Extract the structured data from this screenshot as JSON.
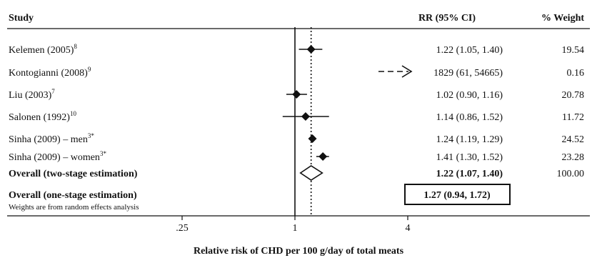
{
  "headers": {
    "study": "Study",
    "rr": "RR (95% CI)",
    "weight": "% Weight"
  },
  "chart_data": {
    "type": "forest",
    "x_scale": "log",
    "xlim": [
      0.2,
      16
    ],
    "xticks": [
      {
        "value": 0.25,
        "label": ".25"
      },
      {
        "value": 1,
        "label": "1"
      },
      {
        "value": 4,
        "label": "4"
      }
    ],
    "null_line": 1,
    "xlabel": "Relative risk of CHD per 100 g/day of total meats",
    "studies": [
      {
        "name": "Kelemen (2005)",
        "ref": "8",
        "rr": 1.22,
        "lo": 1.05,
        "hi": 1.4,
        "rr_text": "1.22 (1.05, 1.40)",
        "weight": "19.54"
      },
      {
        "name": "Kontogianni (2008)",
        "ref": "9",
        "rr": 1829,
        "lo": 61,
        "hi": 54665,
        "rr_text": "1829 (61, 54665)",
        "weight": "0.16",
        "off_scale": true
      },
      {
        "name": "Liu (2003)",
        "ref": "7",
        "rr": 1.02,
        "lo": 0.9,
        "hi": 1.16,
        "rr_text": "1.02 (0.90, 1.16)",
        "weight": "20.78"
      },
      {
        "name": "Salonen (1992)",
        "ref": "10",
        "rr": 1.14,
        "lo": 0.86,
        "hi": 1.52,
        "rr_text": "1.14 (0.86, 1.52)",
        "weight": "11.72"
      },
      {
        "name": "Sinha (2009) – men",
        "ref": "3*",
        "rr": 1.24,
        "lo": 1.19,
        "hi": 1.29,
        "rr_text": "1.24 (1.19, 1.29)",
        "weight": "24.52"
      },
      {
        "name": "Sinha (2009) – women",
        "ref": "3*",
        "rr": 1.41,
        "lo": 1.3,
        "hi": 1.52,
        "rr_text": "1.41 (1.30, 1.52)",
        "weight": "23.28"
      }
    ],
    "overall_two_stage": {
      "name": "Overall (two-stage estimation)",
      "rr": 1.22,
      "lo": 1.07,
      "hi": 1.4,
      "rr_text": "1.22 (1.07, 1.40)",
      "weight": "100.00"
    },
    "overall_one_stage": {
      "name": "Overall (one-stage estimation)",
      "rr_text": "1.27 (0.94, 1.72)"
    },
    "note": "Weights are from random effects analysis"
  }
}
